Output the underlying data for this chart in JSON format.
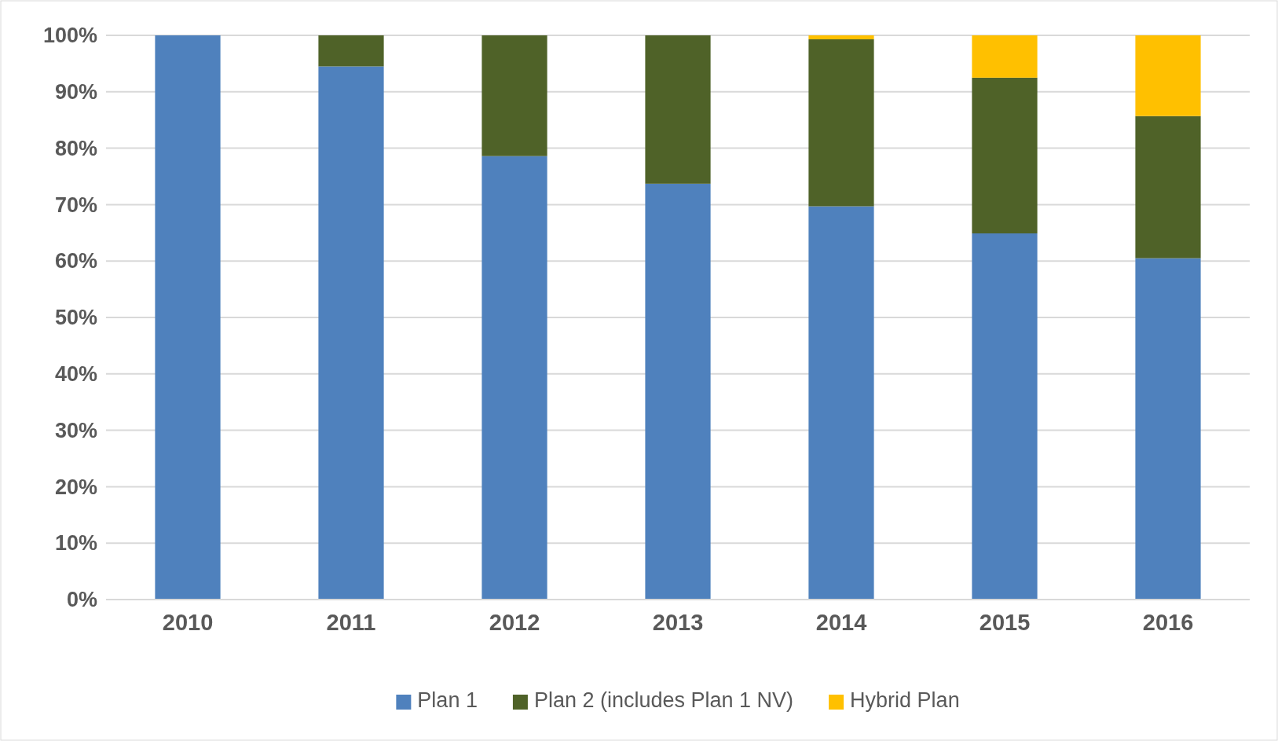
{
  "chart_data": {
    "type": "bar",
    "stacked": true,
    "categories": [
      "2010",
      "2011",
      "2012",
      "2013",
      "2014",
      "2015",
      "2016"
    ],
    "series": [
      {
        "name": "Plan 1",
        "color": "#4f81bd",
        "values": [
          100,
          94.5,
          78.6,
          73.7,
          69.7,
          64.9,
          60.5
        ]
      },
      {
        "name": "Plan 2 (includes Plan 1 NV)",
        "color": "#4f6228",
        "values": [
          0,
          5.5,
          21.4,
          26.3,
          29.6,
          27.6,
          25.2
        ]
      },
      {
        "name": "Hybrid Plan",
        "color": "#ffc000",
        "values": [
          0,
          0,
          0,
          0,
          0.7,
          7.5,
          14.3
        ]
      }
    ],
    "ylim": [
      0,
      100
    ],
    "yticks": [
      {
        "value": 0,
        "label": "0%"
      },
      {
        "value": 10,
        "label": "10%"
      },
      {
        "value": 20,
        "label": "20%"
      },
      {
        "value": 30,
        "label": "30%"
      },
      {
        "value": 40,
        "label": "40%"
      },
      {
        "value": 50,
        "label": "50%"
      },
      {
        "value": 60,
        "label": "60%"
      },
      {
        "value": 70,
        "label": "70%"
      },
      {
        "value": 80,
        "label": "80%"
      },
      {
        "value": 90,
        "label": "90%"
      },
      {
        "value": 100,
        "label": "100%"
      }
    ],
    "grid": "y",
    "legend": "bottom"
  }
}
